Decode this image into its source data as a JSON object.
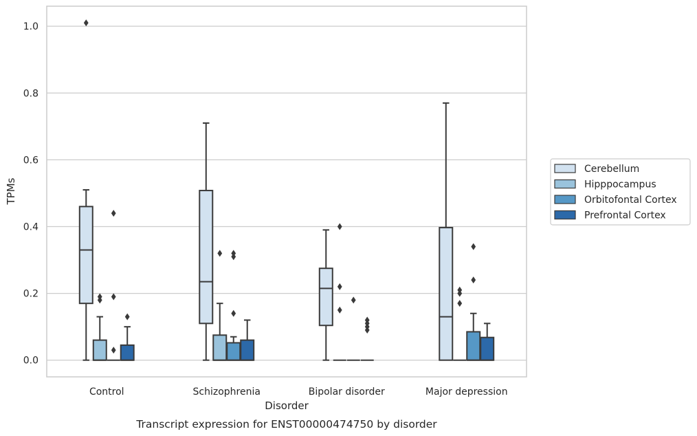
{
  "chart_data": {
    "type": "box",
    "caption": "Transcript expression for ENST00000474750 by disorder",
    "xlabel": "Disorder",
    "ylabel": "TPMs",
    "ylim": [
      -0.05,
      1.06
    ],
    "yticks": [
      0.0,
      0.2,
      0.4,
      0.6,
      0.8,
      1.0
    ],
    "ytick_labels": [
      "0.0",
      "0.2",
      "0.4",
      "0.6",
      "0.8",
      "1.0"
    ],
    "grid": "horizontal",
    "legend_position": "right",
    "categories": [
      "Control",
      "Schizophrenia",
      "Bipolar disorder",
      "Major depression"
    ],
    "series": [
      {
        "name": "Cerebellum",
        "color": "#d2e2f0",
        "boxes": [
          {
            "whislo": 0.0,
            "q1": 0.17,
            "med": 0.33,
            "q3": 0.46,
            "whishi": 0.51,
            "fliers": [
              1.01
            ]
          },
          {
            "whislo": 0.0,
            "q1": 0.11,
            "med": 0.235,
            "q3": 0.508,
            "whishi": 0.71,
            "fliers": []
          },
          {
            "whislo": 0.0,
            "q1": 0.104,
            "med": 0.215,
            "q3": 0.275,
            "whishi": 0.39,
            "fliers": []
          },
          {
            "whislo": 0.0,
            "q1": 0.0,
            "med": 0.13,
            "q3": 0.397,
            "whishi": 0.77,
            "fliers": []
          }
        ]
      },
      {
        "name": "Hipppocampus",
        "color": "#9ac3dc",
        "boxes": [
          {
            "whislo": 0.0,
            "q1": 0.0,
            "med": 0.0,
            "q3": 0.06,
            "whishi": 0.13,
            "fliers": [
              0.18,
              0.19
            ]
          },
          {
            "whislo": 0.0,
            "q1": 0.0,
            "med": 0.0,
            "q3": 0.075,
            "whishi": 0.17,
            "fliers": [
              0.32
            ]
          },
          {
            "whislo": 0.0,
            "q1": 0.0,
            "med": 0.0,
            "q3": 0.0,
            "whishi": 0.0,
            "fliers": [
              0.15,
              0.22,
              0.4
            ]
          },
          {
            "whislo": 0.0,
            "q1": 0.0,
            "med": 0.0,
            "q3": 0.0,
            "whishi": 0.0,
            "fliers": [
              0.17,
              0.2,
              0.21
            ]
          }
        ]
      },
      {
        "name": "Orbitofontal Cortex",
        "color": "#5698c6",
        "boxes": [
          {
            "whislo": 0.0,
            "q1": 0.0,
            "med": 0.0,
            "q3": 0.0,
            "whishi": 0.0,
            "fliers": [
              0.03,
              0.19,
              0.44
            ]
          },
          {
            "whislo": 0.0,
            "q1": 0.0,
            "med": 0.0,
            "q3": 0.052,
            "whishi": 0.07,
            "fliers": [
              0.14,
              0.31,
              0.32
            ]
          },
          {
            "whislo": 0.0,
            "q1": 0.0,
            "med": 0.0,
            "q3": 0.0,
            "whishi": 0.0,
            "fliers": [
              0.18
            ]
          },
          {
            "whislo": 0.0,
            "q1": 0.0,
            "med": 0.0,
            "q3": 0.085,
            "whishi": 0.14,
            "fliers": [
              0.24,
              0.34
            ]
          }
        ]
      },
      {
        "name": "Prefrontal Cortex",
        "color": "#2c69a9",
        "boxes": [
          {
            "whislo": 0.0,
            "q1": 0.0,
            "med": 0.0,
            "q3": 0.045,
            "whishi": 0.1,
            "fliers": [
              0.13
            ]
          },
          {
            "whislo": 0.0,
            "q1": 0.0,
            "med": 0.0,
            "q3": 0.06,
            "whishi": 0.12,
            "fliers": []
          },
          {
            "whislo": 0.0,
            "q1": 0.0,
            "med": 0.0,
            "q3": 0.0,
            "whishi": 0.0,
            "fliers": [
              0.09,
              0.1,
              0.11,
              0.12
            ]
          },
          {
            "whislo": 0.0,
            "q1": 0.0,
            "med": 0.0,
            "q3": 0.068,
            "whishi": 0.11,
            "fliers": []
          }
        ]
      }
    ]
  }
}
